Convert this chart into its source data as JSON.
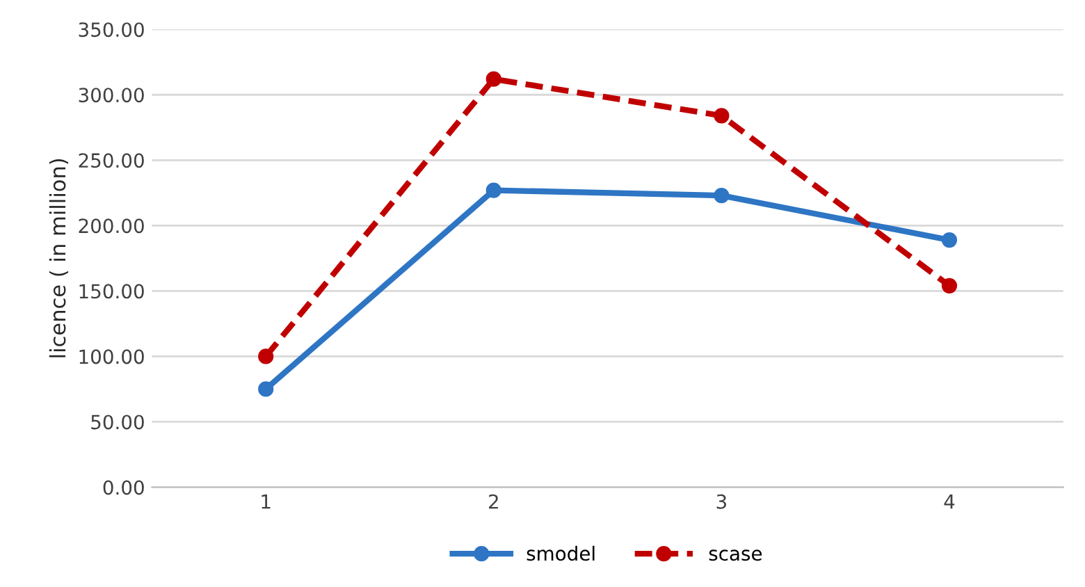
{
  "chart_data": {
    "type": "line",
    "ylabel": "licence ( in million)",
    "categories": [
      "1",
      "2",
      "3",
      "4"
    ],
    "series": [
      {
        "name": "smodel",
        "color": "#2e75c4",
        "values": [
          75,
          227,
          223,
          189
        ],
        "line_style": "solid"
      },
      {
        "name": "scase",
        "color": "#c00000",
        "values": [
          100,
          312,
          284,
          154
        ],
        "line_style": "dashed"
      }
    ],
    "ylim": [
      0,
      350
    ],
    "yticks": [
      {
        "value": 0,
        "label": "0.00"
      },
      {
        "value": 50,
        "label": "50.00"
      },
      {
        "value": 100,
        "label": "100.00"
      },
      {
        "value": 150,
        "label": "150.00"
      },
      {
        "value": 200,
        "label": "200.00"
      },
      {
        "value": 250,
        "label": "250.00"
      },
      {
        "value": 300,
        "label": "300.00"
      },
      {
        "value": 350,
        "label": "350.00"
      }
    ],
    "grid": "y",
    "legend": "bottom",
    "marker": "circle"
  }
}
